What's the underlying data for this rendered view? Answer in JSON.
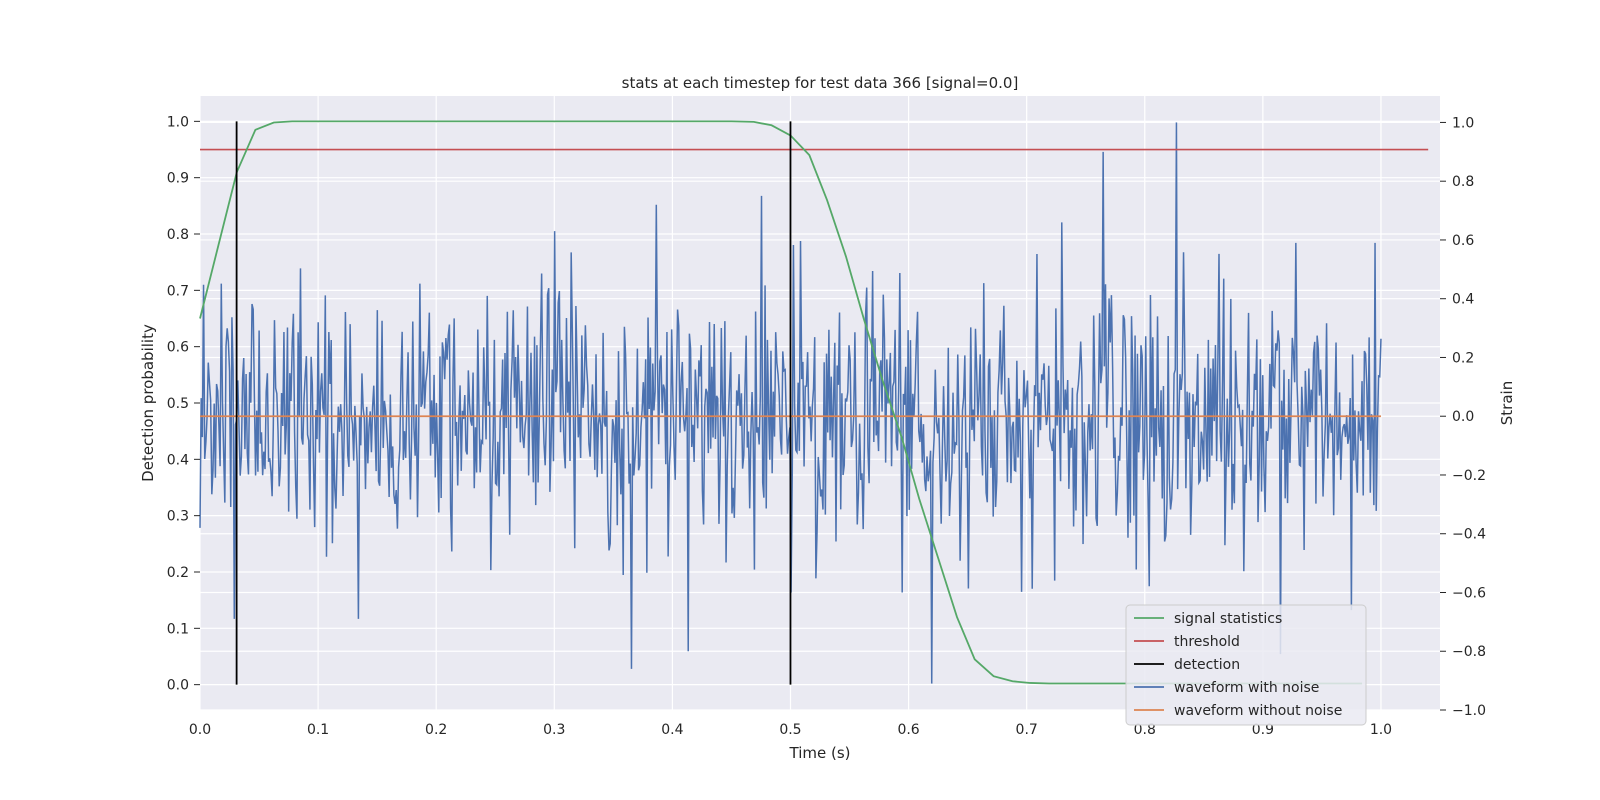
{
  "chart_data": {
    "type": "line",
    "title": "stats at each timestep for test data 366 [signal=0.0]",
    "xlabel": "Time (s)",
    "ylabel_left": "Detection probability",
    "ylabel_right": "Strain",
    "xlim": [
      0.0,
      1.05
    ],
    "ylim_left": [
      -0.045,
      1.045
    ],
    "ylim_right": [
      -1.0,
      1.09
    ],
    "xticks": [
      "0.0",
      "0.1",
      "0.2",
      "0.3",
      "0.4",
      "0.5",
      "0.6",
      "0.7",
      "0.8",
      "0.9",
      "1.0"
    ],
    "yticks_left": [
      "0.0",
      "0.1",
      "0.2",
      "0.3",
      "0.4",
      "0.5",
      "0.6",
      "0.7",
      "0.8",
      "0.9",
      "1.0"
    ],
    "yticks_right": [
      "−1.0",
      "−0.8",
      "−0.6",
      "−0.4",
      "−0.2",
      "0.0",
      "0.2",
      "0.4",
      "0.6",
      "0.8",
      "1.0"
    ],
    "grid": true,
    "legend_position": "bottom-right",
    "colors": {
      "background": "#eaeaf2",
      "signal_statistics": "#55a868",
      "threshold": "#c44e52",
      "detection": "#000000",
      "waveform_with_noise": "#4c72b0",
      "waveform_without_noise": "#dd8452"
    },
    "series": [
      {
        "name": "signal statistics",
        "axis": "left",
        "x": [
          0.0,
          0.0156,
          0.0312,
          0.0469,
          0.0625,
          0.078,
          0.1,
          0.2,
          0.3,
          0.4,
          0.45,
          0.469,
          0.484,
          0.5,
          0.516,
          0.531,
          0.547,
          0.562,
          0.578,
          0.594,
          0.609,
          0.625,
          0.641,
          0.656,
          0.672,
          0.688,
          0.703,
          0.719,
          0.734,
          0.75,
          0.8,
          0.9,
          0.984
        ],
        "values": [
          0.65,
          0.78,
          0.91,
          0.985,
          0.998,
          1.0,
          1.0,
          1.0,
          1.0,
          1.0,
          1.0,
          0.999,
          0.993,
          0.975,
          0.94,
          0.86,
          0.76,
          0.65,
          0.54,
          0.44,
          0.33,
          0.225,
          0.12,
          0.045,
          0.015,
          0.006,
          0.003,
          0.002,
          0.002,
          0.002,
          0.002,
          0.002,
          0.002
        ]
      },
      {
        "name": "threshold",
        "axis": "left",
        "x": [
          0.0,
          1.04
        ],
        "values": [
          0.95,
          0.95
        ]
      },
      {
        "name": "detection",
        "axis": "left",
        "segments": [
          {
            "x": 0.031,
            "y0": 0.0,
            "y1": 1.0
          },
          {
            "x": 0.5,
            "y0": 0.0,
            "y1": 1.0
          }
        ]
      },
      {
        "name": "waveform with noise",
        "axis": "right",
        "x_range": [
          0.0,
          1.0
        ],
        "n_points": 1000,
        "std": 0.22,
        "seed": 366,
        "peaks": [
          {
            "x": 0.827,
            "value": 1.0
          },
          {
            "x": 0.765,
            "value": 0.9
          },
          {
            "x": 0.62,
            "value": -0.91
          },
          {
            "x": 0.365,
            "value": -0.86
          },
          {
            "x": 0.413,
            "value": -0.8
          },
          {
            "x": 0.915,
            "value": -0.81
          },
          {
            "x": 0.134,
            "value": -0.69
          },
          {
            "x": 0.029,
            "value": -0.69
          },
          {
            "x": 0.595,
            "value": -0.6
          },
          {
            "x": 0.5,
            "value": -0.6
          },
          {
            "x": 0.975,
            "value": -0.66
          },
          {
            "x": 0.475,
            "value": 0.75
          },
          {
            "x": 0.386,
            "value": 0.72
          },
          {
            "x": 0.3,
            "value": 0.63
          },
          {
            "x": 0.995,
            "value": 0.59
          },
          {
            "x": 0.0,
            "value": -0.38
          }
        ]
      },
      {
        "name": "waveform without noise",
        "axis": "right",
        "x": [
          0.0,
          1.0
        ],
        "values": [
          0.0,
          0.0
        ]
      }
    ]
  }
}
